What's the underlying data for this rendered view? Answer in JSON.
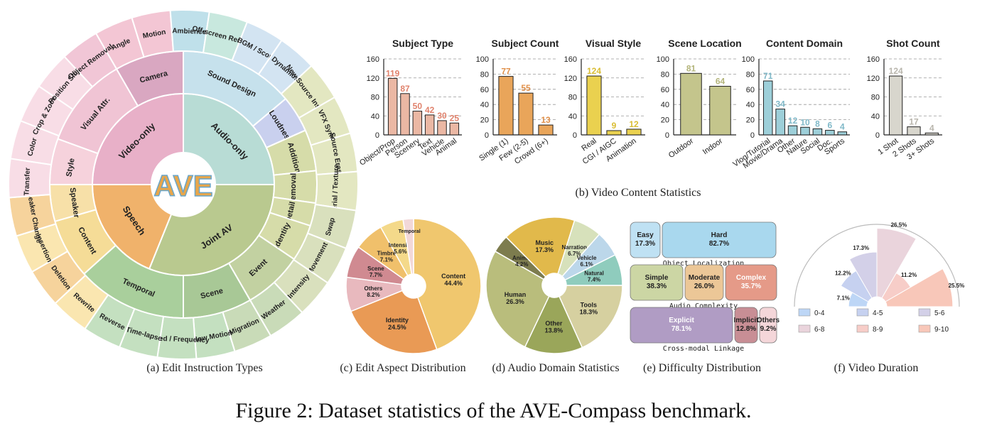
{
  "caption": "Figure 2: Dataset statistics of the AVE-Compass benchmark.",
  "sublabels": {
    "a": "(a) Edit Instruction Types",
    "b": "(b) Video Content Statistics",
    "c": "(c) Edit Aspect Distribution",
    "d": "(d) Audio Domain Statistics",
    "e": "(e) Difficulty Distribution",
    "f": "(f) Video Duration"
  },
  "logo": {
    "text": "AVE"
  },
  "sunburst": {
    "inner": [
      {
        "label": "Video-only",
        "color": "#e8b0c8"
      },
      {
        "label": "Audio-only",
        "color": "#b8dcd5"
      },
      {
        "label": "Joint AV",
        "color": "#b9c98f"
      },
      {
        "label": "Speech",
        "color": "#f0b26b"
      }
    ],
    "middle": [
      {
        "label": "Visual Attr.",
        "parent": 0,
        "color": "#f0c4d4"
      },
      {
        "label": "Camera",
        "parent": 0,
        "color": "#d9a7c1"
      },
      {
        "label": "Sound Design",
        "parent": 1,
        "color": "#c6e1ec"
      },
      {
        "label": "Loudness",
        "parent": 1,
        "color": "#c9d0ee"
      },
      {
        "label": "Addition",
        "parent": 2,
        "color": "#d6dca9"
      },
      {
        "label": "Removal",
        "parent": 2,
        "color": "#d6dca9"
      },
      {
        "label": "Detail",
        "parent": 2,
        "color": "#d6dca9"
      },
      {
        "label": "Identity",
        "parent": 2,
        "color": "#d6dca9"
      },
      {
        "label": "Event",
        "parent": 2,
        "color": "#c2d1a1"
      },
      {
        "label": "Scene",
        "parent": 2,
        "color": "#a8c896"
      },
      {
        "label": "Temporal",
        "parent": 2,
        "color": "#a9cf9c"
      },
      {
        "label": "Content",
        "parent": 3,
        "color": "#f5dc97"
      },
      {
        "label": "Speaker",
        "parent": 3,
        "color": "#f7e0a8"
      },
      {
        "label": "Style",
        "parent": 0,
        "color": "#f6d2dc"
      }
    ],
    "outer": [
      {
        "label": "Angle",
        "color": "#f3c6d4"
      },
      {
        "label": "Motion",
        "color": "#f3c6d4"
      },
      {
        "label": "Ambience",
        "color": "#bfe0ea"
      },
      {
        "label": "Off-screen Remove",
        "color": "#c8e8de"
      },
      {
        "label": "BGM / Score",
        "color": "#d3e4f2"
      },
      {
        "label": "Dynamics",
        "color": "#d3e4f2"
      },
      {
        "label": "New Source Insertion",
        "color": "#e3e7c1"
      },
      {
        "label": "VFX Sync",
        "color": "#e3e7c1"
      },
      {
        "label": "Source Erasure",
        "color": "#e3e7c1"
      },
      {
        "label": "Material / Texture",
        "color": "#e3e7c1"
      },
      {
        "label": "Swap",
        "color": "#d9e0bd"
      },
      {
        "label": "Movement",
        "color": "#d9e0bd"
      },
      {
        "label": "Intensity",
        "color": "#d9e0bd"
      },
      {
        "label": "Weather",
        "color": "#c9dbb8"
      },
      {
        "label": "Migration",
        "color": "#c9dbb8"
      },
      {
        "label": "Slow Motion",
        "color": "#c4e0c0"
      },
      {
        "label": "Speed / Frequency",
        "color": "#c4e0c0"
      },
      {
        "label": "Time-lapse",
        "color": "#c4e0c0"
      },
      {
        "label": "Reverse",
        "color": "#c4e0c0"
      },
      {
        "label": "Rewrite",
        "color": "#fae6b0"
      },
      {
        "label": "Deletion",
        "color": "#f6d39c"
      },
      {
        "label": "Insertion",
        "color": "#fae6b0"
      },
      {
        "label": "Speaker Change",
        "color": "#f6d39c"
      },
      {
        "label": "Transfer",
        "color": "#f8dde6"
      },
      {
        "label": "Color",
        "color": "#f8dde6"
      },
      {
        "label": "Crop & Zoom",
        "color": "#f8dde6"
      },
      {
        "label": "Position Shift",
        "color": "#f8dde6"
      },
      {
        "label": "Object Removal",
        "color": "#f1c6d6"
      }
    ]
  },
  "chart_data": [
    {
      "type": "bar",
      "title": "Subject Type",
      "categories": [
        "Object/Prop",
        "Person",
        "Scenery",
        "Text",
        "Vehicle",
        "Animal"
      ],
      "values": [
        119,
        87,
        50,
        42,
        30,
        25
      ],
      "ylim": [
        0,
        160
      ],
      "yticks": [
        "0",
        "40",
        "80",
        "120",
        "160"
      ],
      "color": "#ebb8a4",
      "label_color": "#e0826c",
      "grid": true
    },
    {
      "type": "bar",
      "title": "Subject Count",
      "categories": [
        "Single (1)",
        "Few (2-5)",
        "Crowd (6+)"
      ],
      "values": [
        77,
        55,
        13
      ],
      "ylim": [
        0,
        100
      ],
      "yticks": [
        "0",
        "20",
        "40",
        "60",
        "80",
        "100"
      ],
      "color": "#e9a55a",
      "label_color": "#e0904a",
      "grid": true
    },
    {
      "type": "bar",
      "title": "Visual Style",
      "categories": [
        "Real",
        "CGI / AIGC",
        "Animation"
      ],
      "values": [
        124,
        9,
        12
      ],
      "ylim": [
        0,
        160
      ],
      "yticks": [
        "0",
        "40",
        "80",
        "120",
        "160"
      ],
      "color": "#ead14f",
      "label_color": "#d9bd34",
      "grid": true
    },
    {
      "type": "bar",
      "title": "Scene Location",
      "categories": [
        "Outdoor",
        "Indoor"
      ],
      "values": [
        81,
        64
      ],
      "ylim": [
        0,
        100
      ],
      "yticks": [
        "0",
        "20",
        "40",
        "60",
        "80",
        "100"
      ],
      "color": "#c4c58c",
      "label_color": "#b3b47a",
      "grid": true
    },
    {
      "type": "bar",
      "title": "Content Domain",
      "categories": [
        "Vlog/Tutorial",
        "Movie/Drama",
        "Other",
        "Nature",
        "Social",
        "Doc.",
        "Sports"
      ],
      "values": [
        71,
        34,
        12,
        10,
        8,
        6,
        4
      ],
      "ylim": [
        0,
        100
      ],
      "yticks": [
        "0",
        "20",
        "40",
        "60",
        "80",
        "100"
      ],
      "color": "#9dcfd9",
      "label_color": "#7fb8c8",
      "grid": true
    },
    {
      "type": "bar",
      "title": "Shot Count",
      "categories": [
        "1 Shot",
        "2 Shots",
        "3+ Shots"
      ],
      "values": [
        124,
        17,
        4
      ],
      "ylim": [
        0,
        160
      ],
      "yticks": [
        "0",
        "40",
        "80",
        "120",
        "160"
      ],
      "color": "#d8d6cd",
      "label_color": "#b8b5ac",
      "grid": true
    },
    {
      "type": "pie",
      "title": "",
      "labels": [
        "Content",
        "Identity",
        "Others",
        "Scene",
        "Timbre",
        "Intensity",
        "Temporal"
      ],
      "values": [
        44.4,
        24.5,
        8.2,
        7.7,
        7.1,
        5.6,
        2.5
      ],
      "value_labels": [
        "44.4%",
        "24.5%",
        "8.2%",
        "7.7%",
        "7.1%",
        "5.6%",
        ""
      ],
      "colors": [
        "#f0c76e",
        "#e99a55",
        "#e8b9be",
        "#d08a91",
        "#f0c06b",
        "#f4d98a",
        "#f2d8d8"
      ]
    },
    {
      "type": "pie",
      "title": "",
      "labels": [
        "Tools",
        "Other",
        "Human",
        "Animal",
        "Music",
        "Narration",
        "Vehicle",
        "Natural"
      ],
      "values": [
        18.3,
        13.8,
        26.3,
        4.2,
        17.3,
        6.7,
        6.1,
        7.4
      ],
      "value_labels": [
        "18.3%",
        "13.8%",
        "26.3%",
        "4.2%",
        "17.3%",
        "6.7%",
        "6.1%",
        "7.4%"
      ],
      "colors": [
        "#d6d0a0",
        "#9aa65a",
        "#b9bd7c",
        "#7d7c4e",
        "#e1b94b",
        "#d7e1bb",
        "#bcd7ea",
        "#8fccbd"
      ]
    },
    {
      "type": "table",
      "title": "",
      "rows": [
        {
          "label": "Object Localization",
          "color": "#bfe1f3",
          "segments": [
            {
              "name": "Easy",
              "value": 17.3,
              "text": "17.3%"
            },
            {
              "name": "Hard",
              "value": 82.7,
              "text": "82.7%"
            }
          ]
        },
        {
          "label": "Audio Complexity",
          "segments": [
            {
              "name": "Simple",
              "value": 38.3,
              "text": "38.3%",
              "color": "#ccd6a4"
            },
            {
              "name": "Moderate",
              "value": 26.0,
              "text": "26.0%",
              "color": "#ecc797"
            },
            {
              "name": "Complex",
              "value": 35.7,
              "text": "35.7%",
              "color": "#e59a88"
            }
          ]
        },
        {
          "label": "Cross-modal Linkage",
          "segments": [
            {
              "name": "Explicit",
              "value": 78.1,
              "text": "78.1%",
              "color": "#b09cc4"
            },
            {
              "name": "Implicit",
              "value": 12.8,
              "text": "12.8%",
              "color": "#c88e95"
            },
            {
              "name": "Others",
              "value": 9.2,
              "text": "9.2%",
              "color": "#f4d6d9"
            }
          ]
        }
      ]
    },
    {
      "type": "bar",
      "title": "",
      "categories": [
        "0-4",
        "4-5",
        "5-6",
        "6-8",
        "8-9",
        "9-10"
      ],
      "values": [
        7.1,
        12.2,
        17.3,
        26.5,
        11.2,
        25.5
      ],
      "value_labels": [
        "7.1%",
        "12.2%",
        "17.3%",
        "26.5%",
        "11.2%",
        "25.5%"
      ],
      "colors": [
        "#bdd6f6",
        "#c6d1f0",
        "#d3d0e8",
        "#ead4dc",
        "#f7cdc8",
        "#f8c7b9"
      ]
    }
  ]
}
